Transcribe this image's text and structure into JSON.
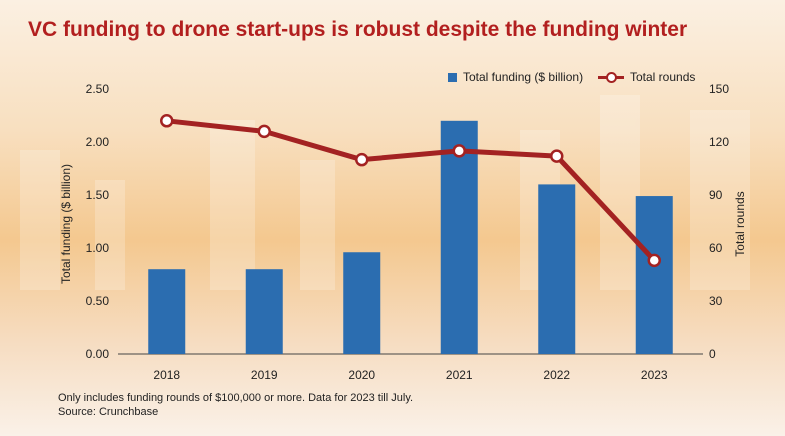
{
  "title": "VC funding to drone start-ups is robust despite the funding winter",
  "legend": {
    "bars": "Total funding ($ billion)",
    "line": "Total rounds"
  },
  "axes": {
    "left_label": "Total funding ($ billion)",
    "right_label": "Total rounds"
  },
  "notes": [
    "Only includes funding rounds of $100,000 or more. Data for 2023 till July.",
    "Source: Crunchbase"
  ],
  "colors": {
    "title": "#b21f1f",
    "bar": "#2b6db0",
    "line": "#a32222"
  },
  "chart_data": {
    "type": "bar",
    "title": "VC funding to drone start-ups is robust despite the funding winter",
    "categories": [
      "2018",
      "2019",
      "2020",
      "2021",
      "2022",
      "2023"
    ],
    "series": [
      {
        "name": "Total funding ($ billion)",
        "type": "bar",
        "axis": "left",
        "values": [
          0.8,
          0.8,
          0.96,
          2.2,
          1.6,
          1.49
        ]
      },
      {
        "name": "Total rounds",
        "type": "line",
        "axis": "right",
        "values": [
          132,
          126,
          110,
          115,
          112,
          53
        ]
      }
    ],
    "ylabel": "Total funding ($ billion)",
    "y2label": "Total rounds",
    "ylim": [
      0,
      2.5
    ],
    "y2lim": [
      0,
      150
    ],
    "yticks": [
      "0.00",
      "0.50",
      "1.00",
      "1.50",
      "2.00",
      "2.50"
    ],
    "y2ticks": [
      "0",
      "30",
      "60",
      "90",
      "120",
      "150"
    ],
    "grid": false,
    "legend": "top-right"
  }
}
